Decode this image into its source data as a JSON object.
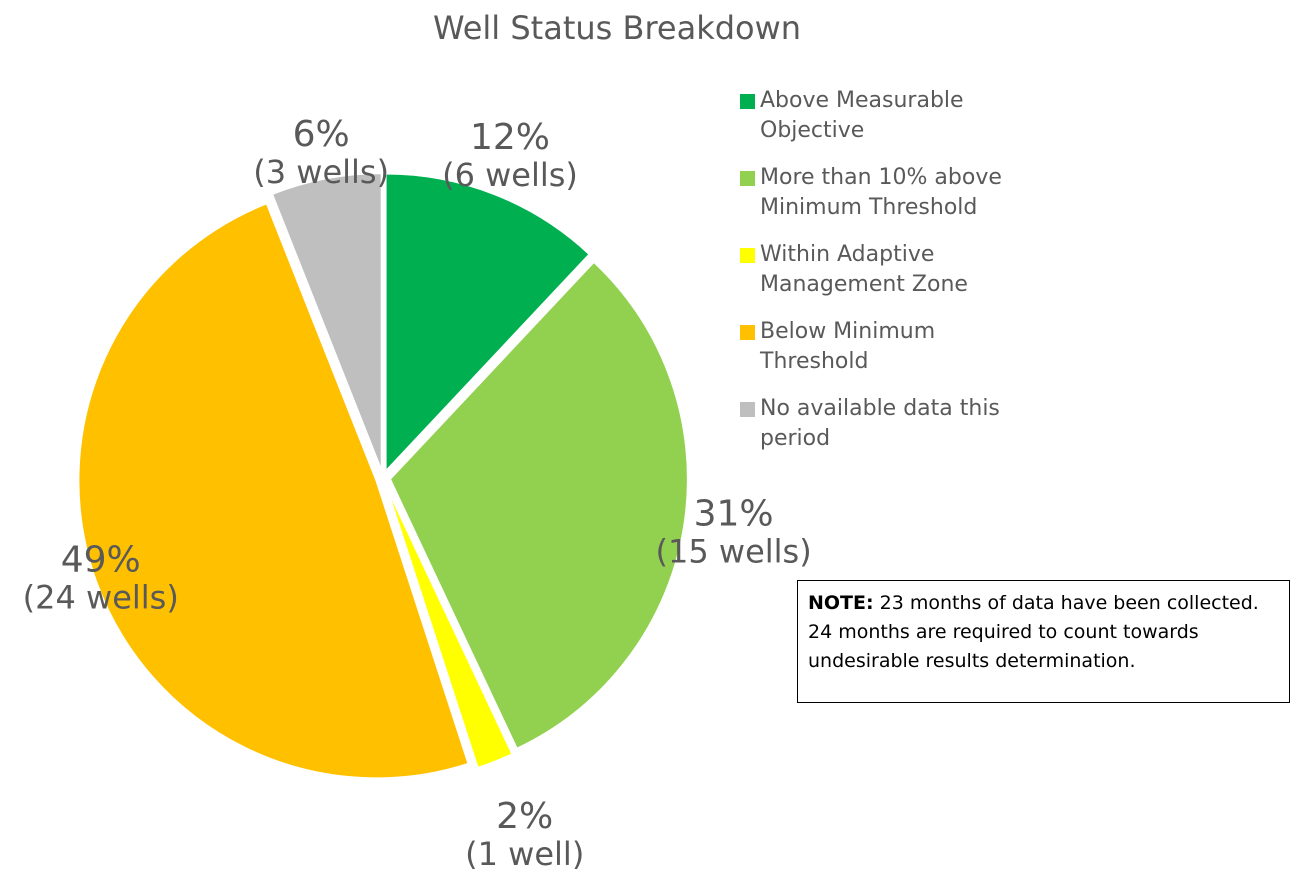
{
  "chart_data": {
    "type": "pie",
    "title": "Well Status Breakdown",
    "categories": [
      "Above Measurable Objective",
      "More than 10% above Minimum Threshold",
      "Within Adaptive Management Zone",
      "Below Minimum Threshold",
      "No available data this period"
    ],
    "values": [
      12,
      31,
      2,
      49,
      6
    ],
    "value_labels": [
      "12%",
      "31%",
      "2%",
      "49%",
      "6%"
    ],
    "count_labels": [
      "(6 wells)",
      "(15 wells)",
      "(1 well)",
      "(24 wells)",
      "(3 wells)"
    ],
    "colors": [
      "#00b050",
      "#92d050",
      "#ffff00",
      "#ffc000",
      "#bfbfbf"
    ],
    "legend": "right"
  },
  "note": {
    "heading": "NOTE:",
    "text": "23 months of data have been collected. 24 months are required to count towards undesirable results determination."
  }
}
